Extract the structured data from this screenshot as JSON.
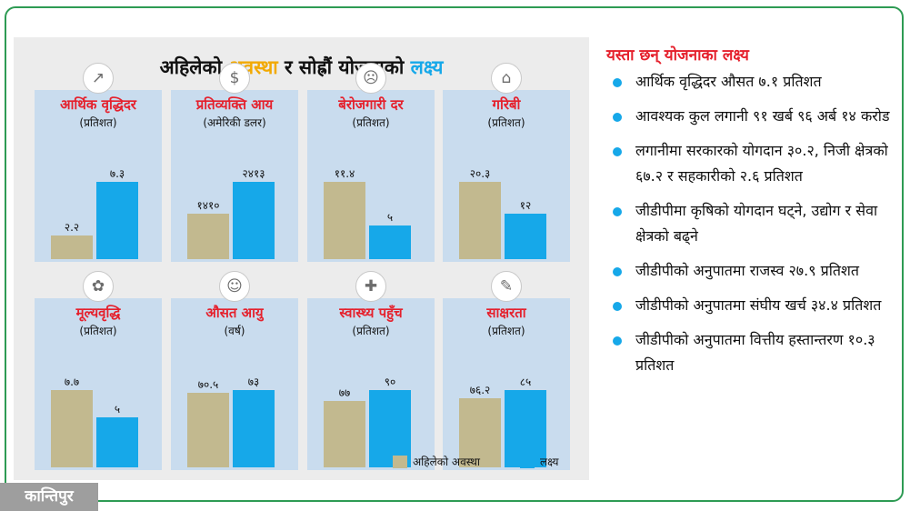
{
  "colors": {
    "current": "#c2b98f",
    "target": "#16a8e9",
    "red": "#e5202c",
    "frame": "#2e9b54",
    "card_bg": "#c9dcee",
    "panel_bg": "#ececec",
    "orange": "#f2a900",
    "logo_bg": "#9e9e9e"
  },
  "title": {
    "part1": "अहिलेको ",
    "part2": "अवस्था",
    "part3": " र सोह्रौं योजनाको ",
    "part4": "लक्ष्य"
  },
  "legend": {
    "current": "अहिलेको अवस्था",
    "target": "लक्ष्य"
  },
  "chart_data": [
    {
      "type": "bar",
      "title": "आर्थिक वृद्धिदर",
      "unit": "(प्रतिशत)",
      "icon": "growth-icon",
      "series": [
        {
          "name": "अहिलेको अवस्था",
          "value": 2.2,
          "label": "२.२"
        },
        {
          "name": "लक्ष्य",
          "value": 7.3,
          "label": "७.३"
        }
      ]
    },
    {
      "type": "bar",
      "title": "प्रतिव्यक्ति आय",
      "unit": "(अमेरिकी डलर)",
      "icon": "money-icon",
      "series": [
        {
          "name": "अहिलेको अवस्था",
          "value": 1410,
          "label": "१४१०"
        },
        {
          "name": "लक्ष्य",
          "value": 2413,
          "label": "२४१३"
        }
      ]
    },
    {
      "type": "bar",
      "title": "बेरोजगारी दर",
      "unit": "(प्रतिशत)",
      "icon": "unemployed-icon",
      "series": [
        {
          "name": "अहिलेको अवस्था",
          "value": 11.4,
          "label": "११.४"
        },
        {
          "name": "लक्ष्य",
          "value": 5,
          "label": "५"
        }
      ]
    },
    {
      "type": "bar",
      "title": "गरिबी",
      "unit": "(प्रतिशत)",
      "icon": "poverty-icon",
      "series": [
        {
          "name": "अहिलेको अवस्था",
          "value": 20.3,
          "label": "२०.३"
        },
        {
          "name": "लक्ष्य",
          "value": 12,
          "label": "१२"
        }
      ]
    },
    {
      "type": "bar",
      "title": "मूल्यवृद्धि",
      "unit": "(प्रतिशत)",
      "icon": "vegetables-icon",
      "series": [
        {
          "name": "अहिलेको अवस्था",
          "value": 7.7,
          "label": "७.७"
        },
        {
          "name": "लक्ष्य",
          "value": 5,
          "label": "५"
        }
      ]
    },
    {
      "type": "bar",
      "title": "औसत आयु",
      "unit": "(वर्ष)",
      "icon": "elderly-couple-icon",
      "series": [
        {
          "name": "अहिलेको अवस्था",
          "value": 70.5,
          "label": "७०.५"
        },
        {
          "name": "लक्ष्य",
          "value": 73,
          "label": "७३"
        }
      ]
    },
    {
      "type": "bar",
      "title": "स्वास्थ्य पहुँच",
      "unit": "(प्रतिशत)",
      "icon": "doctor-icon",
      "series": [
        {
          "name": "अहिलेको अवस्था",
          "value": 77,
          "label": "७७"
        },
        {
          "name": "लक्ष्य",
          "value": 90,
          "label": "९०"
        }
      ]
    },
    {
      "type": "bar",
      "title": "साक्षरता",
      "unit": "(प्रतिशत)",
      "icon": "reading-icon",
      "series": [
        {
          "name": "अहिलेको अवस्था",
          "value": 76.2,
          "label": "७६.२"
        },
        {
          "name": "लक्ष्य",
          "value": 85,
          "label": "८५"
        }
      ]
    }
  ],
  "targets": {
    "title": "यस्ता छन् योजनाका लक्ष्य",
    "items": [
      "आर्थिक वृद्धिदर औसत ७.१ प्रतिशत",
      "आवश्यक कुल लगानी ९१ खर्ब ९६ अर्ब १४ करोड",
      "लगानीमा सरकारको योगदान ३०.२, निजी क्षेत्रको ६७.२ र सहकारीको २.६ प्रतिशत",
      "जीडीपीमा कृषिको योगदान घट्ने, उद्योग र सेवा क्षेत्रको बढ्ने",
      "जीडीपीको अनुपातमा राजस्व २७.९ प्रतिशत",
      "जीडीपीको अनुपातमा संघीय खर्च ३४.४ प्रतिशत",
      "जीडीपीको अनुपातमा वित्तीय हस्तान्तरण १०.३ प्रतिशत"
    ]
  },
  "logo": "कान्तिपुर"
}
